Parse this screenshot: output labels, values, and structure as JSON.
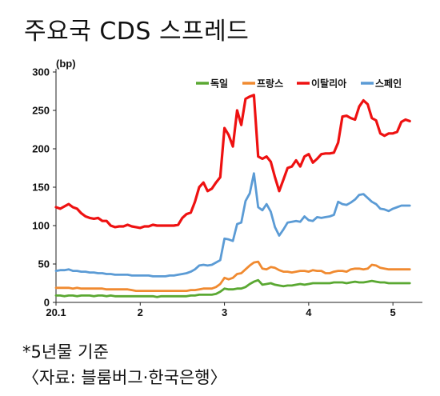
{
  "title": "주요국 CDS 스프레드",
  "notes": {
    "basis": "*5년물 기준",
    "source": "〈자료: 블룸버그·한국은행〉"
  },
  "colors": {
    "독일": "#5aa832",
    "프랑스": "#f08a30",
    "이탈리아": "#ee1111",
    "스페인": "#5b9bd5"
  },
  "chart_data": {
    "type": "line",
    "unit": "(bp)",
    "ylim": [
      0,
      300
    ],
    "yticks": [
      0,
      50,
      100,
      150,
      200,
      250,
      300
    ],
    "xlim": [
      1.0,
      5.35
    ],
    "xticks": [
      {
        "value": 1.0,
        "label": "20.1"
      },
      {
        "value": 2.0,
        "label": "2"
      },
      {
        "value": 3.0,
        "label": "3"
      },
      {
        "value": 4.0,
        "label": "4"
      },
      {
        "value": 5.0,
        "label": "5"
      }
    ],
    "legend_position": "top-right",
    "x": [
      1.0,
      1.05,
      1.1,
      1.15,
      1.2,
      1.25,
      1.3,
      1.35,
      1.4,
      1.45,
      1.5,
      1.55,
      1.6,
      1.65,
      1.7,
      1.75,
      1.8,
      1.85,
      1.9,
      1.95,
      2.0,
      2.05,
      2.1,
      2.15,
      2.2,
      2.25,
      2.3,
      2.35,
      2.4,
      2.45,
      2.5,
      2.55,
      2.6,
      2.65,
      2.7,
      2.75,
      2.8,
      2.85,
      2.9,
      2.95,
      3.0,
      3.05,
      3.1,
      3.15,
      3.2,
      3.25,
      3.3,
      3.35,
      3.4,
      3.45,
      3.5,
      3.55,
      3.6,
      3.65,
      3.7,
      3.75,
      3.8,
      3.85,
      3.9,
      3.95,
      4.0,
      4.05,
      4.1,
      4.15,
      4.2,
      4.25,
      4.3,
      4.35,
      4.4,
      4.45,
      4.5,
      4.55,
      4.6,
      4.65,
      4.7,
      4.75,
      4.8,
      4.85,
      4.9,
      4.95,
      5.0,
      5.05,
      5.1,
      5.15,
      5.2
    ],
    "series": [
      {
        "name": "독일",
        "values": [
          9,
          9,
          8,
          9,
          9,
          8,
          9,
          9,
          9,
          8,
          9,
          9,
          8,
          9,
          8,
          8,
          8,
          8,
          8,
          8,
          8,
          8,
          8,
          8,
          7,
          8,
          8,
          8,
          8,
          8,
          8,
          8,
          9,
          9,
          10,
          10,
          10,
          10,
          11,
          14,
          18,
          17,
          17,
          18,
          18,
          20,
          24,
          27,
          29,
          23,
          24,
          25,
          23,
          22,
          21,
          22,
          22,
          23,
          24,
          23,
          24,
          25,
          25,
          25,
          25,
          25,
          26,
          26,
          26,
          25,
          26,
          27,
          26,
          26,
          27,
          28,
          27,
          26,
          26,
          25,
          25,
          25,
          25,
          25,
          25
        ]
      },
      {
        "name": "프랑스",
        "values": [
          19,
          19,
          19,
          19,
          18,
          19,
          18,
          18,
          18,
          18,
          18,
          18,
          17,
          17,
          17,
          17,
          17,
          17,
          16,
          15,
          15,
          15,
          15,
          15,
          15,
          15,
          15,
          15,
          15,
          15,
          15,
          15,
          16,
          16,
          17,
          18,
          18,
          18,
          20,
          24,
          32,
          30,
          32,
          37,
          38,
          43,
          48,
          52,
          53,
          44,
          43,
          46,
          45,
          42,
          40,
          40,
          39,
          40,
          41,
          41,
          40,
          42,
          41,
          41,
          38,
          38,
          40,
          41,
          41,
          40,
          43,
          44,
          44,
          43,
          44,
          49,
          48,
          45,
          44,
          43,
          43,
          43,
          43,
          43,
          43
        ]
      },
      {
        "name": "이탈리아",
        "values": [
          124,
          122,
          125,
          128,
          124,
          122,
          116,
          112,
          110,
          109,
          110,
          106,
          106,
          100,
          98,
          99,
          99,
          101,
          99,
          98,
          97,
          99,
          99,
          101,
          100,
          100,
          100,
          100,
          100,
          101,
          110,
          115,
          117,
          131,
          150,
          156,
          145,
          148,
          156,
          163,
          227,
          218,
          203,
          250,
          231,
          265,
          268,
          270,
          190,
          187,
          190,
          183,
          163,
          145,
          160,
          175,
          177,
          185,
          177,
          190,
          193,
          182,
          187,
          193,
          194,
          194,
          195,
          208,
          242,
          243,
          240,
          238,
          255,
          263,
          258,
          240,
          237,
          220,
          217,
          220,
          220,
          222,
          235,
          238,
          236
        ]
      },
      {
        "name": "스페인",
        "values": [
          41,
          42,
          42,
          43,
          41,
          41,
          40,
          40,
          39,
          39,
          38,
          38,
          37,
          37,
          36,
          36,
          36,
          36,
          35,
          35,
          35,
          35,
          35,
          34,
          34,
          34,
          34,
          35,
          35,
          36,
          37,
          38,
          40,
          43,
          48,
          49,
          48,
          49,
          52,
          55,
          83,
          82,
          80,
          102,
          104,
          132,
          142,
          168,
          124,
          120,
          128,
          118,
          98,
          87,
          95,
          104,
          105,
          106,
          105,
          112,
          107,
          106,
          111,
          110,
          111,
          112,
          114,
          131,
          128,
          127,
          130,
          134,
          140,
          141,
          136,
          131,
          128,
          122,
          121,
          119,
          122,
          124,
          126,
          126,
          126
        ]
      }
    ]
  }
}
